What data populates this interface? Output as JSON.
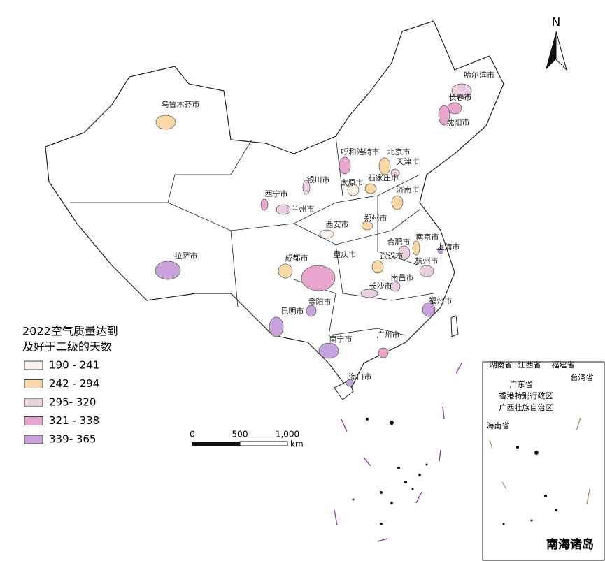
{
  "map": {
    "north": "N",
    "legend": {
      "title_lines": [
        "2022空气质量达到",
        "及好于二级的天数"
      ],
      "classes": [
        {
          "label": "190 - 241",
          "color": "#fdf1ea"
        },
        {
          "label": "242 - 294",
          "color": "#f9d8a6"
        },
        {
          "label": "295- 320",
          "color": "#ebcfe0"
        },
        {
          "label": "321 - 338",
          "color": "#e9a6cc"
        },
        {
          "label": "339- 365",
          "color": "#c7a2dd"
        }
      ]
    },
    "scale": {
      "ticks": [
        "0",
        "500",
        "1,000"
      ],
      "unit": "km"
    },
    "cities": [
      {
        "name": "乌鲁木齐市",
        "color": "#f9d8a6"
      },
      {
        "name": "哈尔滨市",
        "color": "#ebcfe0"
      },
      {
        "name": "长春市",
        "color": "#e9a6cc"
      },
      {
        "name": "沈阳市",
        "color": "#e9a6cc"
      },
      {
        "name": "呼和浩特市",
        "color": "#e9a6cc"
      },
      {
        "name": "北京市",
        "color": "#f9d8a6"
      },
      {
        "name": "天津市",
        "color": "#ebcfe0"
      },
      {
        "name": "银川市",
        "color": "#ebcfe0"
      },
      {
        "name": "太原市",
        "color": "#fdf1ea"
      },
      {
        "name": "石家庄市",
        "color": "#f9d8a6"
      },
      {
        "name": "济南市",
        "color": "#f9d8a6"
      },
      {
        "name": "西宁市",
        "color": "#e9a6cc"
      },
      {
        "name": "兰州市",
        "color": "#ebcfe0"
      },
      {
        "name": "西安市",
        "color": "#fdf1ea"
      },
      {
        "name": "郑州市",
        "color": "#f9d8a6"
      },
      {
        "name": "合肥市",
        "color": "#ebcfe0"
      },
      {
        "name": "南京市",
        "color": "#f9d8a6"
      },
      {
        "name": "上海市",
        "color": "#c7a2dd"
      },
      {
        "name": "拉萨市",
        "color": "#c7a2dd"
      },
      {
        "name": "成都市",
        "color": "#f9d8a6"
      },
      {
        "name": "重庆市",
        "color": "#e9a6cc"
      },
      {
        "name": "武汉市",
        "color": "#f9d8a6"
      },
      {
        "name": "杭州市",
        "color": "#ebcfe0"
      },
      {
        "name": "南昌市",
        "color": "#ebcfe0"
      },
      {
        "name": "长沙市",
        "color": "#ebcfe0"
      },
      {
        "name": "福州市",
        "color": "#c7a2dd"
      },
      {
        "name": "贵阳市",
        "color": "#c7a2dd"
      },
      {
        "name": "昆明市",
        "color": "#c7a2dd"
      },
      {
        "name": "南宁市",
        "color": "#c7a2dd"
      },
      {
        "name": "广州市",
        "color": "#e9a6cc"
      },
      {
        "name": "海口市",
        "color": "#c7a2dd"
      }
    ],
    "inset": {
      "labels": [
        "湖南省",
        "江西省",
        "福建省",
        "广东省",
        "台湾省",
        "香港特别行政区",
        "广西壮族自治区",
        "海南省"
      ],
      "title": "南海诸岛"
    }
  }
}
